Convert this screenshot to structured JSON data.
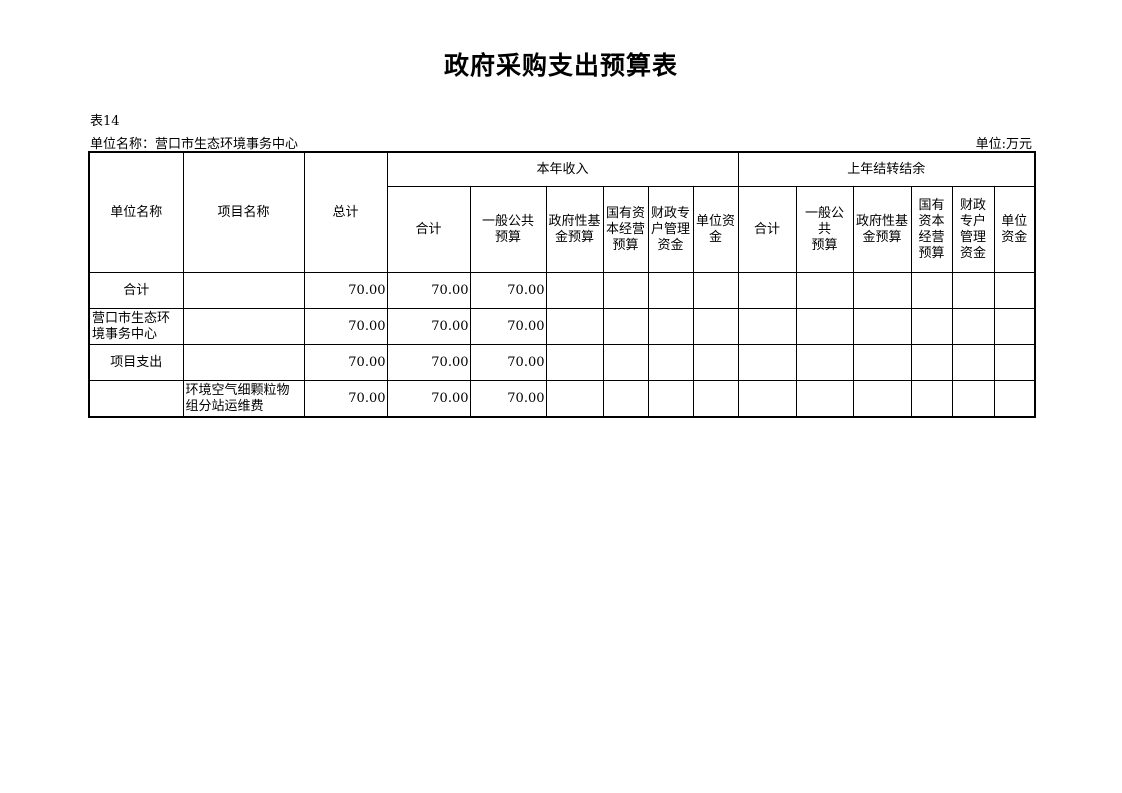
{
  "title": "政府采购支出预算表",
  "table_no": "表14",
  "unit_label": "单位名称：营口市生态环境事务中心",
  "unit_of_measure": "单位:万元",
  "headers": {
    "unit_name": "单位名称",
    "project_name": "项目名称",
    "total": "总计",
    "current_year": "本年收入",
    "carryover": "上年结转结余",
    "current_sub": [
      "合计",
      "一般公共\n预算",
      "政府性基\n金预算",
      "国有资\n本经营\n预算",
      "财政专\n户管理\n资金",
      "单位资\n金"
    ],
    "carryover_sub": [
      "合计",
      "一般公\n共\n预算",
      "政府性基\n金预算",
      "国有\n资本\n经营\n预算",
      "财政\n专户\n管理\n资金",
      "单位\n资金"
    ]
  },
  "rows": [
    {
      "cells": [
        "合计",
        "",
        "70.00",
        "70.00",
        "70.00",
        "",
        "",
        "",
        "",
        "",
        "",
        "",
        "",
        "",
        ""
      ]
    },
    {
      "cells": [
        "营口市生态环\n境事务中心",
        "",
        "70.00",
        "70.00",
        "70.00",
        "",
        "",
        "",
        "",
        "",
        "",
        "",
        "",
        "",
        ""
      ]
    },
    {
      "cells": [
        "项目支出",
        "",
        "70.00",
        "70.00",
        "70.00",
        "",
        "",
        "",
        "",
        "",
        "",
        "",
        "",
        "",
        ""
      ]
    },
    {
      "cells": [
        "",
        "环境空气细颗粒物\n组分站运维费",
        "70.00",
        "70.00",
        "70.00",
        "",
        "",
        "",
        "",
        "",
        "",
        "",
        "",
        "",
        ""
      ]
    }
  ]
}
